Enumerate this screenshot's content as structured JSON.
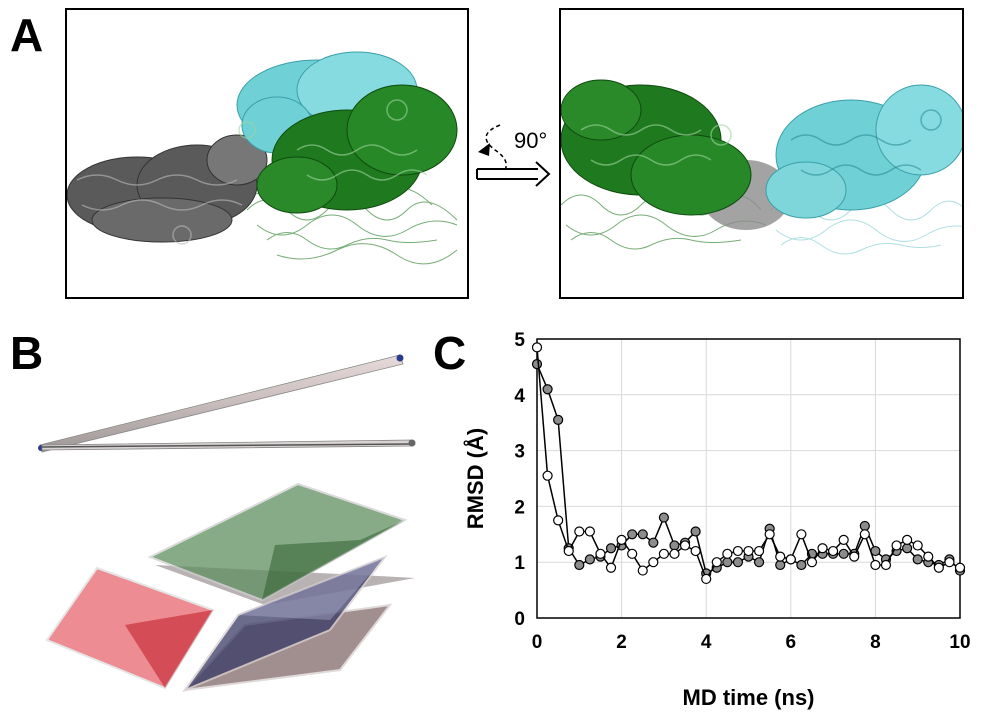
{
  "panels": {
    "a": {
      "letter": "A",
      "rotation_label": "90°"
    },
    "b": {
      "letter": "B"
    },
    "c": {
      "letter": "C"
    }
  },
  "colors": {
    "gray_protein": "#5a5a5a",
    "green_protein": "#1f7a1f",
    "cyan_protein": "#6fd0d6",
    "red_plane": "#e0303a",
    "green_plane": "#5f8f60",
    "navy_plane": "#3a3a66",
    "brown_plane": "#8a7272"
  },
  "chart_data": {
    "type": "line",
    "xlabel": "MD time (ns)",
    "ylabel": "RMSD (Å)",
    "xlim": [
      0,
      10
    ],
    "ylim": [
      0,
      5
    ],
    "xticks": [
      "0",
      "2",
      "4",
      "6",
      "8",
      "10"
    ],
    "yticks": [
      "0",
      "1",
      "2",
      "3",
      "4",
      "5"
    ],
    "grid": true,
    "series": [
      {
        "marker": "filled-gray",
        "x": [
          0,
          0.25,
          0.5,
          0.75,
          1,
          1.25,
          1.5,
          1.75,
          2,
          2.25,
          2.5,
          2.75,
          3,
          3.25,
          3.5,
          3.75,
          4,
          4.25,
          4.5,
          4.75,
          5,
          5.25,
          5.5,
          5.75,
          6,
          6.25,
          6.5,
          6.75,
          7,
          7.25,
          7.5,
          7.75,
          8,
          8.25,
          8.5,
          8.75,
          9,
          9.25,
          9.5,
          9.75,
          10
        ],
        "y": [
          4.55,
          4.1,
          3.55,
          1.25,
          0.95,
          1.05,
          1.1,
          1.25,
          1.3,
          1.5,
          1.5,
          1.35,
          1.8,
          1.3,
          1.35,
          1.55,
          0.8,
          0.9,
          1.0,
          1.0,
          1.1,
          1.0,
          1.6,
          0.95,
          1.05,
          0.95,
          1.15,
          1.15,
          1.15,
          1.15,
          1.15,
          1.65,
          1.2,
          1.05,
          1.2,
          1.25,
          1.05,
          1.0,
          0.95,
          1.05,
          0.85
        ]
      },
      {
        "marker": "open-white",
        "x": [
          0,
          0.25,
          0.5,
          0.75,
          1,
          1.25,
          1.5,
          1.75,
          2,
          2.25,
          2.5,
          2.75,
          3,
          3.25,
          3.5,
          3.75,
          4,
          4.25,
          4.5,
          4.75,
          5,
          5.25,
          5.5,
          5.75,
          6,
          6.25,
          6.5,
          6.75,
          7,
          7.25,
          7.5,
          7.75,
          8,
          8.25,
          8.5,
          8.75,
          9,
          9.25,
          9.5,
          9.75,
          10
        ],
        "y": [
          4.85,
          2.55,
          1.75,
          1.2,
          1.55,
          1.55,
          1.15,
          0.9,
          1.4,
          1.15,
          0.85,
          1.0,
          1.15,
          1.15,
          1.3,
          1.2,
          0.7,
          1.0,
          1.15,
          1.2,
          1.2,
          1.2,
          1.5,
          1.1,
          1.05,
          1.5,
          1.0,
          1.25,
          1.2,
          1.4,
          1.1,
          1.5,
          0.95,
          0.95,
          1.3,
          1.4,
          1.3,
          1.1,
          0.9,
          1.0,
          0.9
        ]
      }
    ]
  }
}
